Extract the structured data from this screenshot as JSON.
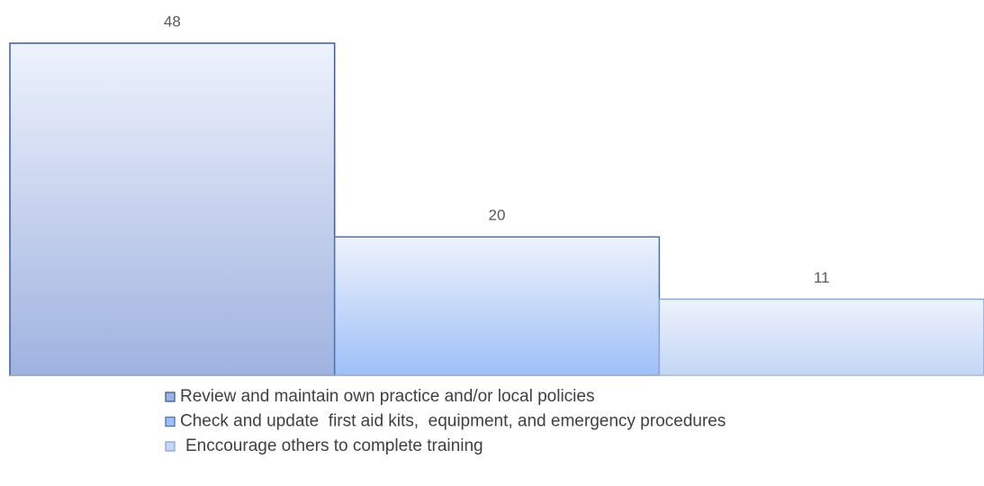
{
  "chart_data": {
    "type": "bar",
    "series": [
      {
        "name": "Review and maintain own practice and/or local policies",
        "color": "#9fb2df",
        "border": "#3b5e99",
        "values": [
          48
        ]
      },
      {
        "name": "Check and update  first aid kits,  equipment, and emergency procedures",
        "color": "#9ec0f8",
        "border": "#4a74b4",
        "values": [
          20
        ]
      },
      {
        "name": "Enccourage others to complete training",
        "color": "#c3d6f6",
        "border": "#8ba9d9",
        "values": [
          11
        ]
      }
    ]
  }
}
